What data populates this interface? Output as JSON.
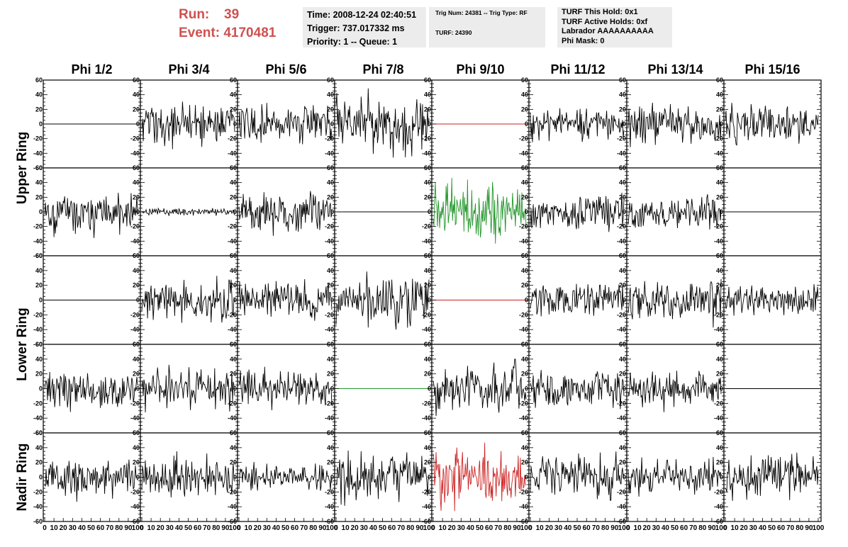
{
  "header": {
    "run_label": "Run:",
    "run_value": "39",
    "event_label": "Event:",
    "event_value": "4170481"
  },
  "info": {
    "time": "Time: 2008-12-24 02:40:51",
    "trigger": "Trigger: 737.017332 ms",
    "priority": "Priority: 1 -- Queue: 1",
    "trig_num": "Trig Num: 24381 -- Trig Type: RF",
    "turf": "TURF: 24390",
    "turf_hold": "TURF This Hold: 0x1",
    "turf_active": "TURF Active Holds: 0xf",
    "labrador": "Labrador AAAAAAAAAA",
    "phi_mask": "Phi Mask: 0"
  },
  "chart_data": {
    "type": "line",
    "columns": [
      "Phi 1/2",
      "Phi 3/4",
      "Phi 5/6",
      "Phi 7/8",
      "Phi 9/10",
      "Phi 11/12",
      "Phi 13/14",
      "Phi 15/16"
    ],
    "ring_labels": [
      {
        "label": "Upper Ring",
        "rows": [
          0,
          1
        ]
      },
      {
        "label": "Lower Ring",
        "rows": [
          2,
          3
        ]
      },
      {
        "label": "Nadir Ring",
        "rows": [
          4,
          4
        ]
      }
    ],
    "xlim": [
      0,
      100
    ],
    "ylim": [
      -60,
      60
    ],
    "x_ticks": [
      "0",
      "10",
      "20",
      "30",
      "40",
      "50",
      "60",
      "70",
      "80",
      "90",
      "100"
    ],
    "y_ticks": [
      "-60",
      "-40",
      "-20",
      "0",
      "20",
      "40",
      "60"
    ],
    "colors": {
      "normal": "#000000",
      "red": "#cc2222",
      "green": "#22962a"
    },
    "panels": [
      [
        {
          "color": "normal",
          "amplitude": 0
        },
        {
          "color": "normal",
          "amplitude": 18
        },
        {
          "color": "normal",
          "amplitude": 16
        },
        {
          "color": "normal",
          "amplitude": 22
        },
        {
          "color": "red",
          "amplitude": 0
        },
        {
          "color": "normal",
          "amplitude": 14
        },
        {
          "color": "normal",
          "amplitude": 16
        },
        {
          "color": "normal",
          "amplitude": 17
        }
      ],
      [
        {
          "color": "normal",
          "amplitude": 18
        },
        {
          "color": "normal",
          "amplitude": 3
        },
        {
          "color": "normal",
          "amplitude": 17
        },
        {
          "color": "normal",
          "amplitude": 0
        },
        {
          "color": "green",
          "amplitude": 24
        },
        {
          "color": "normal",
          "amplitude": 14
        },
        {
          "color": "normal",
          "amplitude": 13
        },
        {
          "color": "normal",
          "amplitude": 0
        }
      ],
      [
        {
          "color": "normal",
          "amplitude": 0
        },
        {
          "color": "normal",
          "amplitude": 15
        },
        {
          "color": "normal",
          "amplitude": 16
        },
        {
          "color": "normal",
          "amplitude": 21
        },
        {
          "color": "red",
          "amplitude": 0
        },
        {
          "color": "normal",
          "amplitude": 14
        },
        {
          "color": "normal",
          "amplitude": 17
        },
        {
          "color": "normal",
          "amplitude": 13
        }
      ],
      [
        {
          "color": "normal",
          "amplitude": 15
        },
        {
          "color": "normal",
          "amplitude": 15
        },
        {
          "color": "normal",
          "amplitude": 15
        },
        {
          "color": "green",
          "amplitude": 0
        },
        {
          "color": "normal",
          "amplitude": 20
        },
        {
          "color": "normal",
          "amplitude": 14
        },
        {
          "color": "normal",
          "amplitude": 14
        },
        {
          "color": "normal",
          "amplitude": 0
        }
      ],
      [
        {
          "color": "normal",
          "amplitude": 15
        },
        {
          "color": "normal",
          "amplitude": 15
        },
        {
          "color": "normal",
          "amplitude": 10
        },
        {
          "color": "normal",
          "amplitude": 19
        },
        {
          "color": "red",
          "amplitude": 22
        },
        {
          "color": "normal",
          "amplitude": 17
        },
        {
          "color": "normal",
          "amplitude": 14
        },
        {
          "color": "normal",
          "amplitude": 16
        }
      ]
    ]
  }
}
